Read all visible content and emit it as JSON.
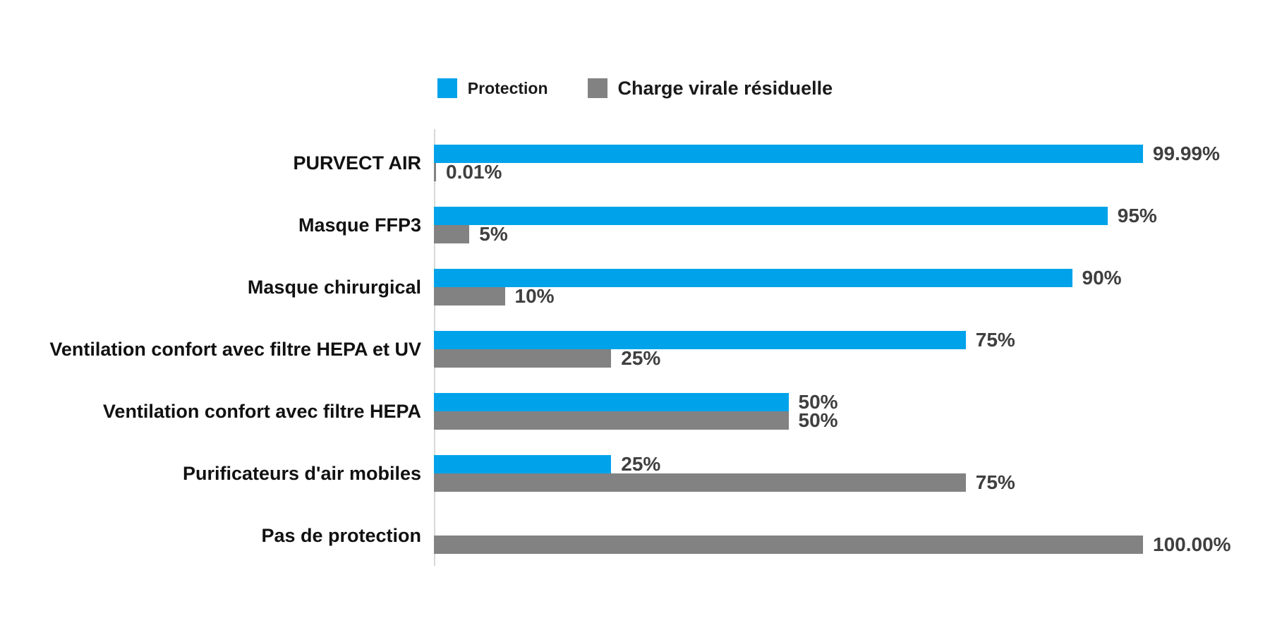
{
  "chart_data": {
    "type": "bar",
    "orientation": "horizontal",
    "title": "",
    "xlabel": "",
    "ylabel": "",
    "xlim": [
      0,
      100
    ],
    "grid": false,
    "legend_position": "top",
    "axis_line_color": "#d8d8d8",
    "value_label_color": "#3f3f3f",
    "category_label_color": "#111111",
    "categories": [
      "PURVECT AIR",
      "Masque FFP3",
      "Masque chirurgical",
      "Ventilation confort avec filtre HEPA et UV",
      "Ventilation confort avec filtre HEPA",
      "Purificateurs d'air mobiles",
      "Pas de protection"
    ],
    "series": [
      {
        "name": "Protection",
        "color": "#00A3E9",
        "values": [
          99.99,
          95,
          90,
          75,
          50,
          25,
          null
        ],
        "labels": [
          "99.99%",
          "95%",
          "90%",
          "75%",
          "50%",
          "25%",
          null
        ]
      },
      {
        "name": "Charge virale résiduelle",
        "color": "#828282",
        "values": [
          0.01,
          5,
          10,
          25,
          50,
          75,
          100
        ],
        "labels": [
          "0.01%",
          "5%",
          "10%",
          "25%",
          "50%",
          "75%",
          "100.00%"
        ]
      }
    ]
  },
  "legend": {
    "items": [
      {
        "label": "Protection",
        "color": "#00A3E9"
      },
      {
        "label": "Charge virale résiduelle",
        "color": "#828282"
      }
    ]
  }
}
